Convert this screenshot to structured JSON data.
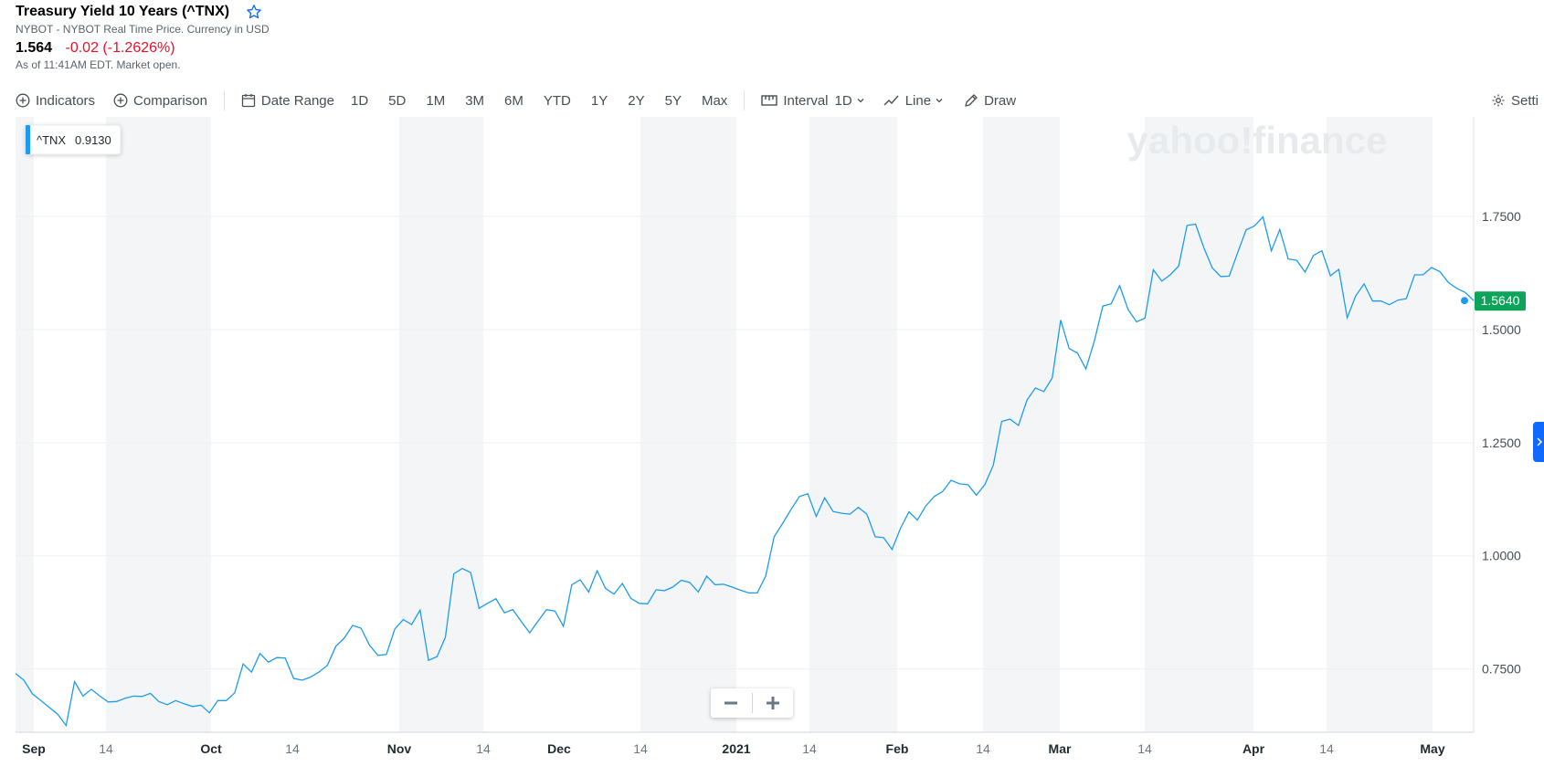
{
  "header": {
    "title": "Treasury Yield 10 Years (^TNX)",
    "subtitle": "NYBOT - NYBOT Real Time Price. Currency in USD",
    "price": "1.564",
    "change": "-0.02 (-1.2626%)",
    "as_of": "As of 11:41AM EDT. Market open."
  },
  "toolbar": {
    "indicators": "Indicators",
    "comparison": "Comparison",
    "date_range": "Date Range",
    "ranges": [
      "1D",
      "5D",
      "1M",
      "3M",
      "6M",
      "YTD",
      "1Y",
      "2Y",
      "5Y",
      "Max"
    ],
    "interval_label": "Interval",
    "interval_value": "1D",
    "chart_type": "Line",
    "draw": "Draw",
    "settings": "Setti"
  },
  "legend": {
    "symbol": "^TNX",
    "value": "0.9130"
  },
  "watermark": "yahoo!finance",
  "last_price_label": "1.5640",
  "colors": {
    "line": "#1d9bf0",
    "last_badge": "#0ea35a",
    "change": "#eb0f29",
    "accent": "#0f69ff"
  },
  "chart_data": {
    "type": "line",
    "title": "",
    "xlabel": "",
    "ylabel": "",
    "ylim": [
      0.61,
      1.97
    ],
    "yticks": [
      0.75,
      1.0,
      1.25,
      1.5,
      1.75
    ],
    "ytick_labels": [
      "0.7500",
      "1.0000",
      "1.2500",
      "1.5000",
      "1.7500"
    ],
    "xtick_labels": [
      "Sep",
      "14",
      "Oct",
      "14",
      "Nov",
      "14",
      "Dec",
      "14",
      "2021",
      "14",
      "Feb",
      "14",
      "Mar",
      "14",
      "Apr",
      "14",
      "May"
    ],
    "series": [
      {
        "values": [
          0.74,
          0.725,
          0.695,
          0.68,
          0.665,
          0.65,
          0.625,
          0.722,
          0.69,
          0.705,
          0.69,
          0.677,
          0.678,
          0.685,
          0.69,
          0.689,
          0.696,
          0.678,
          0.671,
          0.68,
          0.673,
          0.667,
          0.67,
          0.653,
          0.68,
          0.68,
          0.697,
          0.761,
          0.743,
          0.784,
          0.765,
          0.775,
          0.774,
          0.729,
          0.725,
          0.732,
          0.743,
          0.758,
          0.8,
          0.818,
          0.846,
          0.84,
          0.802,
          0.78,
          0.782,
          0.838,
          0.859,
          0.848,
          0.88,
          0.769,
          0.777,
          0.82,
          0.96,
          0.972,
          0.963,
          0.884,
          0.895,
          0.905,
          0.874,
          0.881,
          0.855,
          0.83,
          0.856,
          0.881,
          0.878,
          0.844,
          0.936,
          0.947,
          0.92,
          0.967,
          0.928,
          0.915,
          0.939,
          0.906,
          0.895,
          0.894,
          0.925,
          0.923,
          0.931,
          0.946,
          0.941,
          0.92,
          0.955,
          0.936,
          0.937,
          0.931,
          0.924,
          0.918,
          0.918,
          0.955,
          1.042,
          1.071,
          1.102,
          1.131,
          1.137,
          1.087,
          1.128,
          1.098,
          1.094,
          1.092,
          1.107,
          1.092,
          1.042,
          1.04,
          1.014,
          1.061,
          1.097,
          1.079,
          1.11,
          1.131,
          1.142,
          1.167,
          1.159,
          1.157,
          1.134,
          1.157,
          1.2,
          1.297,
          1.302,
          1.288,
          1.344,
          1.371,
          1.363,
          1.393,
          1.521,
          1.458,
          1.448,
          1.413,
          1.475,
          1.552,
          1.557,
          1.597,
          1.544,
          1.517,
          1.525,
          1.632,
          1.607,
          1.621,
          1.64,
          1.73,
          1.733,
          1.68,
          1.636,
          1.617,
          1.618,
          1.67,
          1.72,
          1.729,
          1.749,
          1.674,
          1.721,
          1.656,
          1.653,
          1.627,
          1.664,
          1.674,
          1.619,
          1.633,
          1.526,
          1.574,
          1.601,
          1.563,
          1.563,
          1.555,
          1.565,
          1.568,
          1.621,
          1.621,
          1.637,
          1.628,
          1.604,
          1.591,
          1.582,
          1.564
        ]
      }
    ],
    "last_value": 1.564,
    "grid": true,
    "legend": "top-left"
  }
}
